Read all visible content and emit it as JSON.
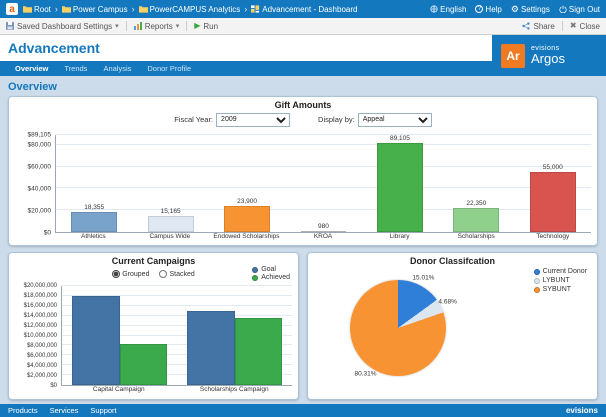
{
  "topbar": {
    "logo_text": "a",
    "breadcrumb": [
      {
        "label": "Root"
      },
      {
        "label": "Power Campus"
      },
      {
        "label": "PowerCAMPUS Analytics"
      },
      {
        "label": "Advancement - Dashboard"
      }
    ],
    "actions": [
      {
        "label": "English",
        "icon": "globe-icon"
      },
      {
        "label": "Help",
        "icon": "help-icon"
      },
      {
        "label": "Settings",
        "icon": "gear-icon"
      },
      {
        "label": "Sign Out",
        "icon": "sign-out-icon"
      }
    ]
  },
  "toolbar": {
    "saved_settings": "Saved Dashboard Settings",
    "reports": "Reports",
    "run": "Run",
    "share": "Share",
    "close": "Close"
  },
  "header": {
    "title": "Advancement",
    "tabs": [
      {
        "label": "Overview",
        "active": true
      },
      {
        "label": "Trends",
        "active": false
      },
      {
        "label": "Analysis",
        "active": false
      },
      {
        "label": "Donor Profile",
        "active": false
      }
    ],
    "brand": {
      "badge": "Ar",
      "company": "evisions",
      "product": "Argos"
    }
  },
  "main": {
    "section_title": "Overview",
    "gift_amounts": {
      "fiscal_year_label": "Fiscal Year:",
      "fiscal_year_value": "2009",
      "display_by_label": "Display by:",
      "display_by_value": "Appeal"
    },
    "campaigns": {
      "mode_options": [
        "Grouped",
        "Stacked"
      ],
      "mode_selected": "Grouped"
    }
  },
  "footer": {
    "links": [
      "Products",
      "Services",
      "Support"
    ],
    "brand": "evisions"
  },
  "accent_colors": {
    "topbar_blue": "#1478be",
    "badge_orange": "#f07a22",
    "panel_border": "#a9c4db"
  },
  "chart_data": [
    {
      "id": "gift_amounts",
      "type": "bar",
      "title": "Gift Amounts",
      "categories": [
        "Athletics",
        "Campus Wide",
        "Endowed Scholarships",
        "KROA",
        "Library",
        "Scholarships",
        "Technology"
      ],
      "values": [
        18355,
        15165,
        23900,
        980,
        89105,
        22350,
        55000
      ],
      "value_labels": [
        "18,355",
        "15,165",
        "23,900",
        "980",
        "89,105",
        "22,350",
        "55,000"
      ],
      "colors": [
        "#7aa3cc",
        "#dfe7f2",
        "#f79332",
        "#c8c8c8",
        "#47b04b",
        "#8fd08c",
        "#d9534f"
      ],
      "ylim": [
        0,
        89105
      ],
      "yticks": [
        {
          "v": 0,
          "label": "$0"
        },
        {
          "v": 20000,
          "label": "$20,000"
        },
        {
          "v": 40000,
          "label": "$40,000"
        },
        {
          "v": 60000,
          "label": "$60,000"
        },
        {
          "v": 80000,
          "label": "$80,000"
        },
        {
          "v": 89105,
          "label": "$89,105"
        }
      ],
      "grid": true,
      "legend_position": "none"
    },
    {
      "id": "campaigns",
      "type": "bar",
      "title": "Current Campaigns",
      "categories": [
        "Capital Campaign",
        "Scholarships Campaign"
      ],
      "series": [
        {
          "name": "Goal",
          "color": "#4374a5",
          "values": [
            18000000,
            15000000
          ]
        },
        {
          "name": "Achieved",
          "color": "#3aaa4c",
          "values": [
            8300000,
            13500000
          ]
        }
      ],
      "ylim": [
        0,
        20000000
      ],
      "yticks": [
        {
          "v": 0,
          "label": "$0"
        },
        {
          "v": 2000000,
          "label": "$2,000,000"
        },
        {
          "v": 4000000,
          "label": "$4,000,000"
        },
        {
          "v": 6000000,
          "label": "$6,000,000"
        },
        {
          "v": 8000000,
          "label": "$8,000,000"
        },
        {
          "v": 10000000,
          "label": "$10,000,000"
        },
        {
          "v": 12000000,
          "label": "$12,000,000"
        },
        {
          "v": 14000000,
          "label": "$14,000,000"
        },
        {
          "v": 16000000,
          "label": "$16,000,000"
        },
        {
          "v": 18000000,
          "label": "$18,000,000"
        },
        {
          "v": 20000000,
          "label": "$20,000,000"
        }
      ],
      "grid": true,
      "legend_position": "right"
    },
    {
      "id": "donors",
      "type": "pie",
      "title": "Donor Classifcation",
      "slices": [
        {
          "label": "Current Donor",
          "value": 15.01,
          "pct_label": "15.01%",
          "color": "#2f7ed8"
        },
        {
          "label": "LYBUNT",
          "value": 4.68,
          "pct_label": "4.68%",
          "color": "#dce6f1"
        },
        {
          "label": "SYBUNT",
          "value": 80.31,
          "pct_label": "80.31%",
          "color": "#f79332"
        }
      ],
      "start_angle_deg": 0,
      "legend_position": "right"
    }
  ]
}
